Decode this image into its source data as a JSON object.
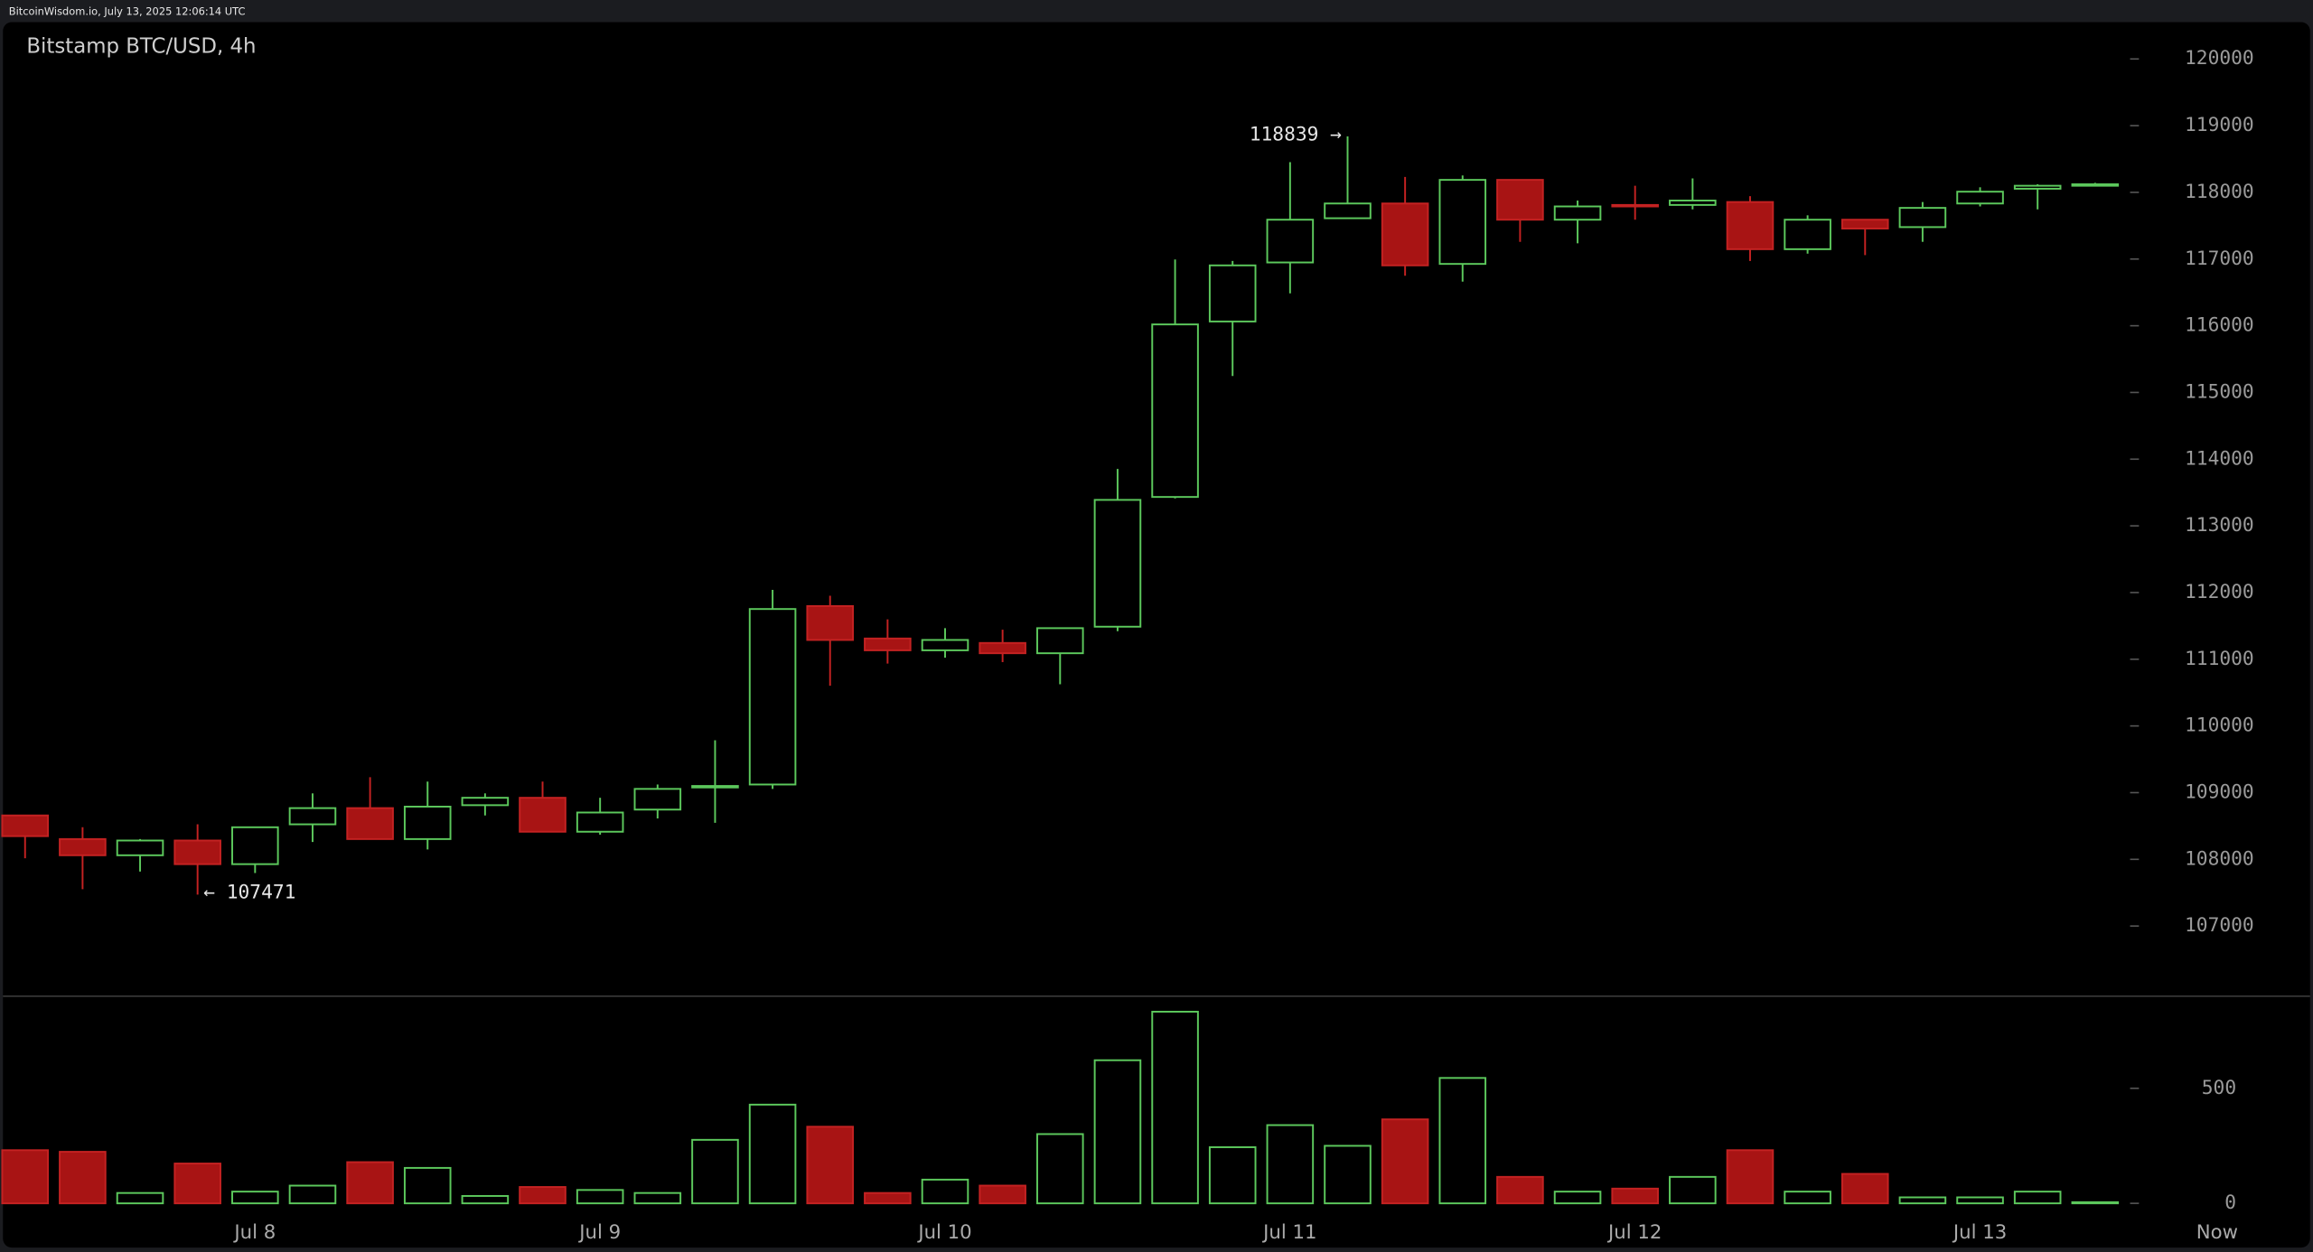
{
  "chart_data": {
    "type": "candlestick",
    "caption": "BitcoinWisdom.io, July 13, 2025 12:06:14 UTC",
    "title": "Bitstamp BTC/USD, 4h",
    "categories": [
      null,
      null,
      null,
      null,
      "Jul 8",
      null,
      null,
      null,
      null,
      null,
      "Jul 9",
      null,
      null,
      null,
      null,
      null,
      "Jul 10",
      null,
      null,
      null,
      null,
      null,
      "Jul 11",
      null,
      null,
      null,
      null,
      null,
      "Jul 12",
      null,
      null,
      null,
      null,
      null,
      "Jul 13",
      null,
      null
    ],
    "x_end_label": "Now",
    "open": [
      108658,
      108304,
      108061,
      108282,
      107928,
      108525,
      108768,
      108304,
      108812,
      108923,
      108414,
      108746,
      109078,
      109122,
      111797,
      111311,
      111134,
      111244,
      111090,
      111488,
      113433,
      116064,
      116949,
      117612,
      117833,
      116927,
      118187,
      117590,
      117811,
      117811,
      117855,
      117148,
      117590,
      117479,
      117833,
      118054,
      118099
    ],
    "high": [
      108658,
      108481,
      108304,
      108525,
      108481,
      108989,
      109232,
      109166,
      108989,
      109166,
      108923,
      109122,
      109785,
      112040,
      111952,
      111598,
      111466,
      111443,
      111466,
      113853,
      116993,
      116971,
      118452,
      118839,
      118231,
      118253,
      118187,
      117877,
      118099,
      118209,
      117943,
      117656,
      117590,
      117855,
      118076,
      118121,
      118143
    ],
    "low": [
      108016,
      107552,
      107817,
      107471,
      107795,
      108260,
      108304,
      108149,
      108658,
      108414,
      108370,
      108613,
      108547,
      109056,
      110603,
      110935,
      111023,
      110957,
      110625,
      111421,
      113411,
      115246,
      116485,
      117612,
      116750,
      116661,
      117258,
      117236,
      117590,
      117745,
      116971,
      117081,
      117059,
      117258,
      117789,
      117745,
      118099
    ],
    "close": [
      108348,
      108061,
      108282,
      107928,
      108481,
      108768,
      108304,
      108790,
      108923,
      108414,
      108702,
      109056,
      109100,
      111753,
      111289,
      111134,
      111289,
      111090,
      111466,
      113389,
      116020,
      116905,
      117590,
      117833,
      116905,
      118187,
      117590,
      117789,
      117789,
      117877,
      117148,
      117590,
      117457,
      117767,
      118010,
      118099,
      118121
    ],
    "volume": [
      231,
      224,
      45,
      173,
      51,
      77,
      179,
      154,
      32,
      71,
      58,
      45,
      276,
      429,
      333,
      45,
      103,
      77,
      301,
      622,
      833,
      244,
      340,
      250,
      365,
      545,
      115,
      51,
      64,
      115,
      231,
      51,
      128,
      26,
      26,
      51,
      5
    ],
    "ylim": [
      105960,
      120550
    ],
    "yticks": [
      107000,
      108000,
      109000,
      110000,
      111000,
      112000,
      113000,
      114000,
      115000,
      116000,
      117000,
      118000,
      119000,
      120000
    ],
    "volume_ylim": [
      0,
      900
    ],
    "volume_yticks": [
      0,
      500
    ],
    "up_color": "#5cc85c",
    "down_color": "#a81414",
    "annotations": [
      {
        "label": "118839 →",
        "value": 118839
      },
      {
        "label": "← 107471",
        "value": 107471
      }
    ]
  }
}
